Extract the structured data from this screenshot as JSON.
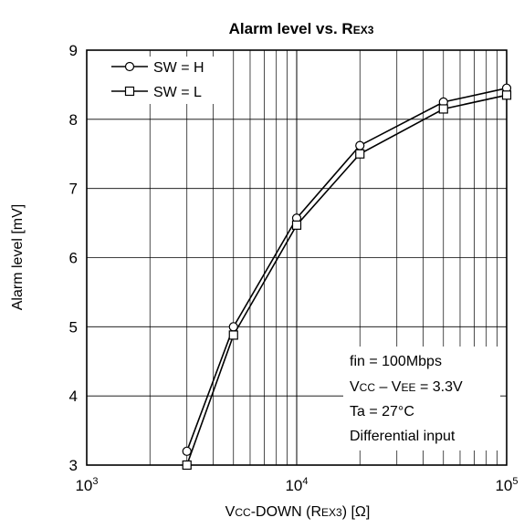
{
  "chart_data": {
    "type": "line",
    "title": {
      "main": "Alarm level vs. R",
      "sub": "EX3"
    },
    "xlabel": {
      "part1": "V",
      "part1_sc": "CC",
      "part2": "-DOWN (R",
      "part2_sc": "EX3",
      "part3": ") [Ω]"
    },
    "ylabel": "Alarm level [mV]",
    "xscale": "log",
    "xlim": [
      1000,
      100000
    ],
    "ylim": [
      3,
      9
    ],
    "grid": true,
    "xticks": [
      {
        "value": 1000,
        "base": "10",
        "exp": "3"
      },
      {
        "value": 10000,
        "base": "10",
        "exp": "4"
      },
      {
        "value": 100000,
        "base": "10",
        "exp": "5"
      }
    ],
    "yticks": [
      3,
      4,
      5,
      6,
      7,
      8,
      9
    ],
    "legend_position": "top-left",
    "series": [
      {
        "name": "SW = H",
        "marker": "circle",
        "x": [
          3000,
          5000,
          10000,
          20000,
          50000,
          100000
        ],
        "y": [
          3.2,
          5.0,
          6.57,
          7.62,
          8.25,
          8.45
        ]
      },
      {
        "name": "SW = L",
        "marker": "square",
        "x": [
          3000,
          5000,
          10000,
          20000,
          50000,
          100000
        ],
        "y": [
          3.0,
          4.88,
          6.47,
          7.5,
          8.15,
          8.35
        ]
      }
    ],
    "annotation": {
      "line1": "fin = 100Mbps",
      "line2_a": "V",
      "line2_a_sc": "CC",
      "line2_b": " – V",
      "line2_b_sc": "EE",
      "line2_c": " = 3.3V",
      "line3": "Ta = 27°C",
      "line4": "Differential input"
    }
  }
}
